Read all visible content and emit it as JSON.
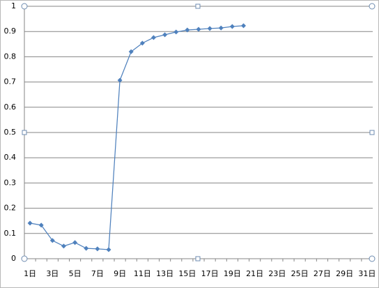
{
  "chart_data": {
    "type": "line",
    "categories": [
      "1日",
      null,
      "3日",
      null,
      "5日",
      null,
      "7日",
      null,
      "9日",
      null,
      "11日",
      null,
      "13日",
      null,
      "15日",
      null,
      "17日",
      null,
      "19日",
      null,
      "21日",
      null,
      "23日",
      null,
      "25日",
      null,
      "27日",
      null,
      "29日",
      null,
      "31日"
    ],
    "values": [
      0.141,
      0.133,
      0.072,
      0.05,
      0.064,
      0.041,
      0.039,
      0.036,
      0.707,
      0.82,
      0.854,
      0.876,
      0.887,
      0.898,
      0.906,
      0.909,
      0.912,
      0.914,
      0.92,
      0.923,
      null,
      null,
      null,
      null,
      null,
      null,
      null,
      null,
      null,
      null,
      null
    ],
    "color": "#4f81bd",
    "ylim": [
      0,
      1
    ],
    "yticks": [
      0,
      0.1,
      0.2,
      0.3,
      0.4,
      0.5,
      0.6,
      0.7,
      0.8,
      0.9,
      1
    ],
    "grid": true
  }
}
